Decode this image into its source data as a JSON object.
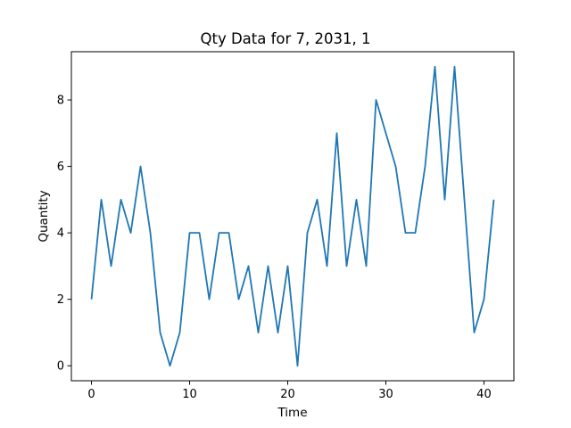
{
  "chart_data": {
    "type": "line",
    "title": "Qty Data for 7, 2031, 1",
    "xlabel": "Time",
    "ylabel": "Quantity",
    "xlim": [
      -2.05,
      43.05
    ],
    "ylim": [
      -0.45,
      9.45
    ],
    "xticks": [
      0,
      10,
      20,
      30,
      40
    ],
    "yticks": [
      0,
      2,
      4,
      6,
      8
    ],
    "grid": false,
    "legend": "none",
    "series": [
      {
        "color": "#1f77b4",
        "x": [
          0,
          1,
          2,
          3,
          4,
          5,
          6,
          7,
          8,
          9,
          10,
          11,
          12,
          13,
          14,
          15,
          16,
          17,
          18,
          19,
          20,
          21,
          22,
          23,
          24,
          25,
          26,
          27,
          28,
          29,
          30,
          31,
          32,
          33,
          34,
          35,
          36,
          37,
          38,
          39,
          40,
          41
        ],
        "y": [
          2,
          5,
          3,
          5,
          4,
          6,
          4,
          1,
          0,
          1,
          4,
          4,
          2,
          4,
          4,
          2,
          3,
          1,
          3,
          1,
          3,
          0,
          4,
          5,
          3,
          7,
          3,
          5,
          3,
          8,
          7,
          6,
          4,
          4,
          6,
          9,
          5,
          9,
          5,
          1,
          2,
          5
        ]
      }
    ]
  }
}
